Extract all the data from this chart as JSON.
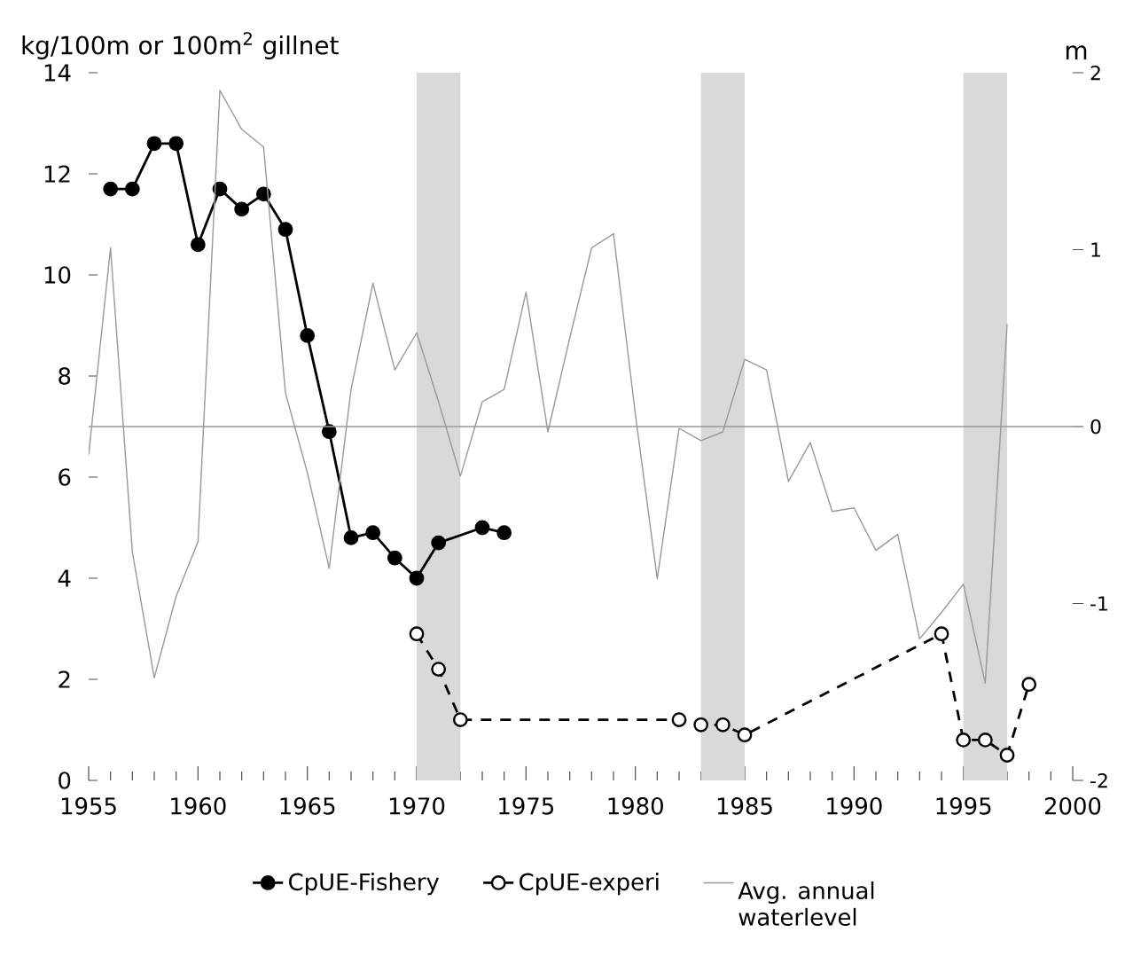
{
  "chart_data": {
    "type": "line",
    "ylabel": "kg/100m or 100m$^{2}$ gillnet",
    "y2label": "m",
    "xlim": [
      1955,
      2000
    ],
    "xticks": [
      1955,
      1960,
      1965,
      1970,
      1975,
      1980,
      1985,
      1990,
      1995,
      2000
    ],
    "ylim": [
      0,
      14
    ],
    "yticks": [
      0,
      2,
      4,
      6,
      8,
      10,
      12,
      14
    ],
    "y2lim": [
      -2,
      2
    ],
    "y2ticks": [
      -2,
      -1,
      0,
      1,
      2
    ],
    "series": [
      {
        "name": "CpUE-Fishery",
        "color": "#000000",
        "marker": "circle",
        "line_style": "solid",
        "x": [
          1956,
          1957,
          1958,
          1959,
          1960,
          1961,
          1962,
          1963,
          1964,
          1965,
          1966,
          1967,
          1968,
          1969,
          1970,
          1971,
          1973,
          1974
        ],
        "values": [
          11.7,
          11.7,
          12.6,
          12.6,
          10.6,
          11.7,
          11.3,
          11.6,
          10.9,
          8.8,
          6.9,
          4.8,
          4.9,
          4.4,
          4.0,
          4.7,
          5.0,
          4.9
        ]
      },
      {
        "name": "CpUE-experi",
        "color": "#000000",
        "marker": "circle",
        "line_style": "dashed",
        "x": [
          1970,
          1971,
          1972,
          1982,
          1983,
          1984,
          1985,
          1994,
          1995,
          1996,
          1997,
          1998
        ],
        "values": [
          2.9,
          2.2,
          1.2,
          1.2,
          1.1,
          1.1,
          0.9,
          2.9,
          0.8,
          0.8,
          0.5,
          1.9
        ]
      },
      {
        "name": "Avg. annual waterlevel",
        "color": "#999999",
        "marker": "none",
        "line_style": "solid",
        "axis": "y2",
        "x": [
          1955,
          1956,
          1957,
          1958,
          1959,
          1960,
          1961,
          1962,
          1963,
          1964,
          1965,
          1966,
          1967,
          1968,
          1969,
          1970,
          1971,
          1972,
          1973,
          1974,
          1975,
          1976,
          1977,
          1978,
          1979,
          1980,
          1981,
          1982,
          1983,
          1984,
          1985,
          1986,
          1987,
          1988,
          1989,
          1990,
          1991,
          1992,
          1993,
          1994,
          1995,
          1996,
          1997
        ],
        "values": [
          -0.16,
          1.01,
          -0.71,
          -1.42,
          -0.96,
          -0.65,
          1.9,
          1.68,
          1.58,
          0.19,
          -0.26,
          -0.8,
          0.21,
          0.81,
          0.32,
          0.53,
          0.14,
          -0.28,
          0.14,
          0.21,
          0.76,
          -0.03,
          0.5,
          1.01,
          1.09,
          0.07,
          -0.86,
          -0.01,
          -0.08,
          -0.03,
          0.38,
          0.32,
          -0.31,
          -0.09,
          -0.48,
          -0.46,
          -0.7,
          -0.61,
          -1.2,
          -1.05,
          -0.89,
          -1.45,
          0.58
        ]
      }
    ],
    "ref_lines": [
      {
        "axis": "y2",
        "value": 0,
        "color": "#999999"
      }
    ],
    "bands": [
      {
        "axis": "x",
        "from": 1970,
        "to": 1972,
        "color": "#d9d9d9"
      },
      {
        "axis": "x",
        "from": 1983,
        "to": 1985,
        "color": "#d9d9d9"
      },
      {
        "axis": "x",
        "from": 1995,
        "to": 1997,
        "color": "#d9d9d9"
      }
    ],
    "grid": false,
    "legend": "bottom"
  }
}
